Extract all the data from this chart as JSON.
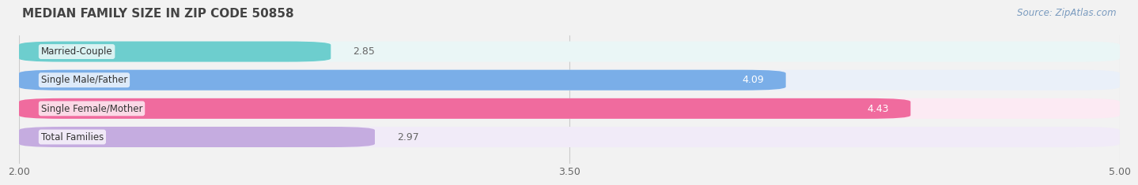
{
  "title": "MEDIAN FAMILY SIZE IN ZIP CODE 50858",
  "source": "Source: ZipAtlas.com",
  "categories": [
    "Married-Couple",
    "Single Male/Father",
    "Single Female/Mother",
    "Total Families"
  ],
  "values": [
    2.85,
    4.09,
    4.43,
    2.97
  ],
  "bar_colors": [
    "#6dcece",
    "#7aaee8",
    "#f06b9e",
    "#c5ace0"
  ],
  "bar_bg_colors": [
    "#eaf6f6",
    "#eaf0f9",
    "#fceaf3",
    "#f1ebf8"
  ],
  "xlim": [
    2.0,
    5.0
  ],
  "xticks": [
    2.0,
    3.5,
    5.0
  ],
  "xtick_labels": [
    "2.00",
    "3.50",
    "5.00"
  ],
  "label_color": "#666666",
  "title_color": "#444444",
  "source_color": "#7a9bbf",
  "background_color": "#f2f2f2"
}
